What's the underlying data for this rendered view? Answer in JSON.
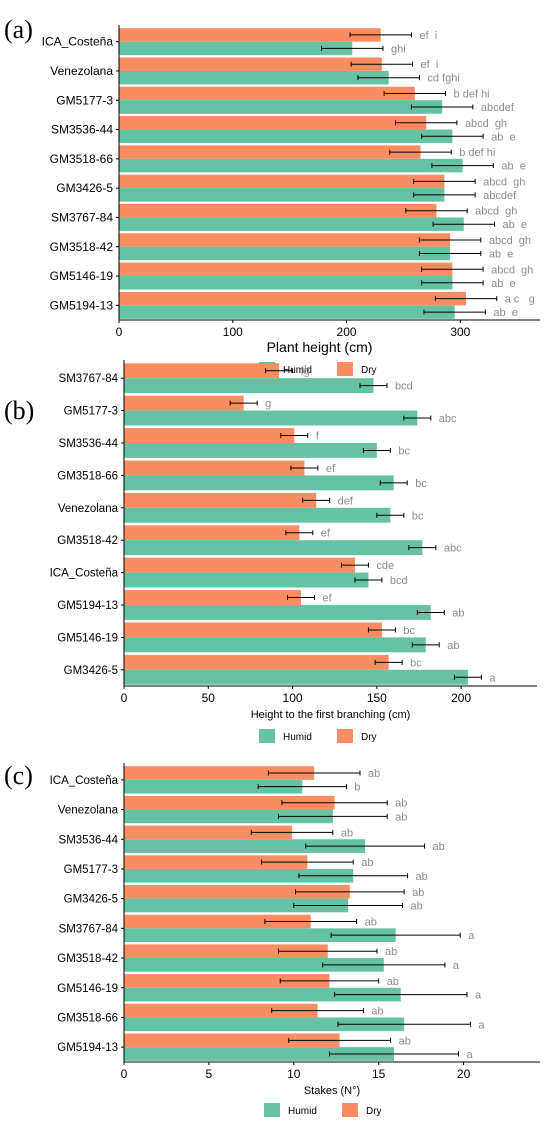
{
  "chart_data": [
    {
      "type": "bar",
      "panel_label": "(a)",
      "title": "",
      "xlabel": "Plant height (cm)",
      "ylabel": "",
      "xlim": [
        0,
        370
      ],
      "ticks": [
        0,
        100,
        200,
        300
      ],
      "orientation": "horizontal",
      "grid": false,
      "legend_position": "bottom",
      "categories": [
        "ICA_Costeña",
        "Venezolana",
        "GM5177-3",
        "SM3536-44",
        "GM3518-66",
        "GM3426-5",
        "SM3767-84",
        "GM3518-42",
        "GM5146-19",
        "GM5194-13"
      ],
      "series": [
        {
          "name": "Humid",
          "color": "#66C2A5",
          "values": [
            205,
            237,
            284,
            293,
            302,
            286,
            303,
            291,
            293,
            295
          ],
          "errors": [
            27,
            27,
            27,
            27,
            27,
            27,
            27,
            27,
            27,
            27
          ],
          "letters": [
            "ghi",
            "cd fghi",
            "abcdef",
            "ab  e",
            "ab  e",
            "abcdef",
            "ab  e",
            "ab  e",
            "ab  e",
            "ab  e"
          ]
        },
        {
          "name": "Dry",
          "color": "#FC8D62",
          "values": [
            230,
            231,
            260,
            270,
            265,
            286,
            279,
            291,
            293,
            305
          ],
          "errors": [
            27,
            27,
            27,
            27,
            27,
            27,
            27,
            27,
            27,
            27
          ],
          "letters": [
            "ef  i",
            "ef  i",
            "b def hi",
            "abcd  gh",
            "b def hi",
            "abcd  gh",
            "abcd  gh",
            "abcd  gh",
            "abcd  gh",
            "a c   g"
          ]
        }
      ]
    },
    {
      "type": "bar",
      "panel_label": "(b)",
      "title": "",
      "xlabel": "Height to the first branching (cm)",
      "ylabel": "",
      "xlim": [
        0,
        245
      ],
      "ticks": [
        0,
        50,
        100,
        150,
        200
      ],
      "orientation": "horizontal",
      "grid": false,
      "legend_position": "bottom",
      "categories": [
        "SM3767-84",
        "GM5177-3",
        "SM3536-44",
        "GM3518-66",
        "Venezolana",
        "GM3518-42",
        "ICA_Costeña",
        "GM5194-13",
        "GM5146-19",
        "GM3426-5"
      ],
      "series": [
        {
          "name": "Humid",
          "color": "#66C2A5",
          "values": [
            148,
            174,
            150,
            160,
            158,
            177,
            145,
            182,
            179,
            204
          ],
          "errors": [
            8,
            8,
            8,
            8,
            8,
            8,
            8,
            8,
            8,
            8
          ],
          "letters": [
            "bcd",
            "abc",
            "bc",
            "bc",
            "bc",
            "abc",
            "bcd",
            "ab",
            "ab",
            "a"
          ]
        },
        {
          "name": "Dry",
          "color": "#FC8D62",
          "values": [
            92,
            71,
            101,
            107,
            114,
            104,
            137,
            105,
            153,
            157
          ],
          "errors": [
            8,
            8,
            8,
            8,
            8,
            8,
            8,
            8,
            8,
            8
          ],
          "letters": [
            "fg",
            "g",
            "f",
            "ef",
            "def",
            "ef",
            "cde",
            "ef",
            "bc",
            "bc"
          ]
        }
      ]
    },
    {
      "type": "bar",
      "panel_label": "(c)",
      "title": "",
      "xlabel": "Stakes (N°)",
      "ylabel": "",
      "xlim": [
        0,
        24.5
      ],
      "ticks": [
        0,
        5,
        10,
        15,
        20
      ],
      "orientation": "horizontal",
      "grid": false,
      "legend_position": "bottom",
      "categories": [
        "ICA_Costeña",
        "Venezolana",
        "SM3536-44",
        "GM5177-3",
        "GM3426-5",
        "SM3767-84",
        "GM3518-42",
        "GM5146-19",
        "GM3518-66",
        "GM5194-13"
      ],
      "series": [
        {
          "name": "Humid",
          "color": "#66C2A5",
          "values": [
            10.5,
            12.3,
            14.2,
            13.5,
            13.2,
            16.0,
            15.3,
            16.3,
            16.5,
            15.9
          ],
          "errors": [
            2.6,
            3.2,
            3.5,
            3.2,
            3.2,
            3.8,
            3.6,
            3.9,
            3.9,
            3.8
          ],
          "letters": [
            "b",
            "ab",
            "ab",
            "ab",
            "ab",
            "a",
            "a",
            "a",
            "a",
            "a"
          ]
        },
        {
          "name": "Dry",
          "color": "#FC8D62",
          "values": [
            11.2,
            12.4,
            9.9,
            10.8,
            13.3,
            11.0,
            12.0,
            12.1,
            11.4,
            12.7
          ],
          "errors": [
            2.7,
            3.1,
            2.4,
            2.7,
            3.2,
            2.7,
            2.9,
            2.9,
            2.7,
            3.0
          ],
          "letters": [
            "ab",
            "ab",
            "ab",
            "ab",
            "ab",
            "ab",
            "ab",
            "ab",
            "ab",
            "ab"
          ]
        }
      ]
    }
  ]
}
